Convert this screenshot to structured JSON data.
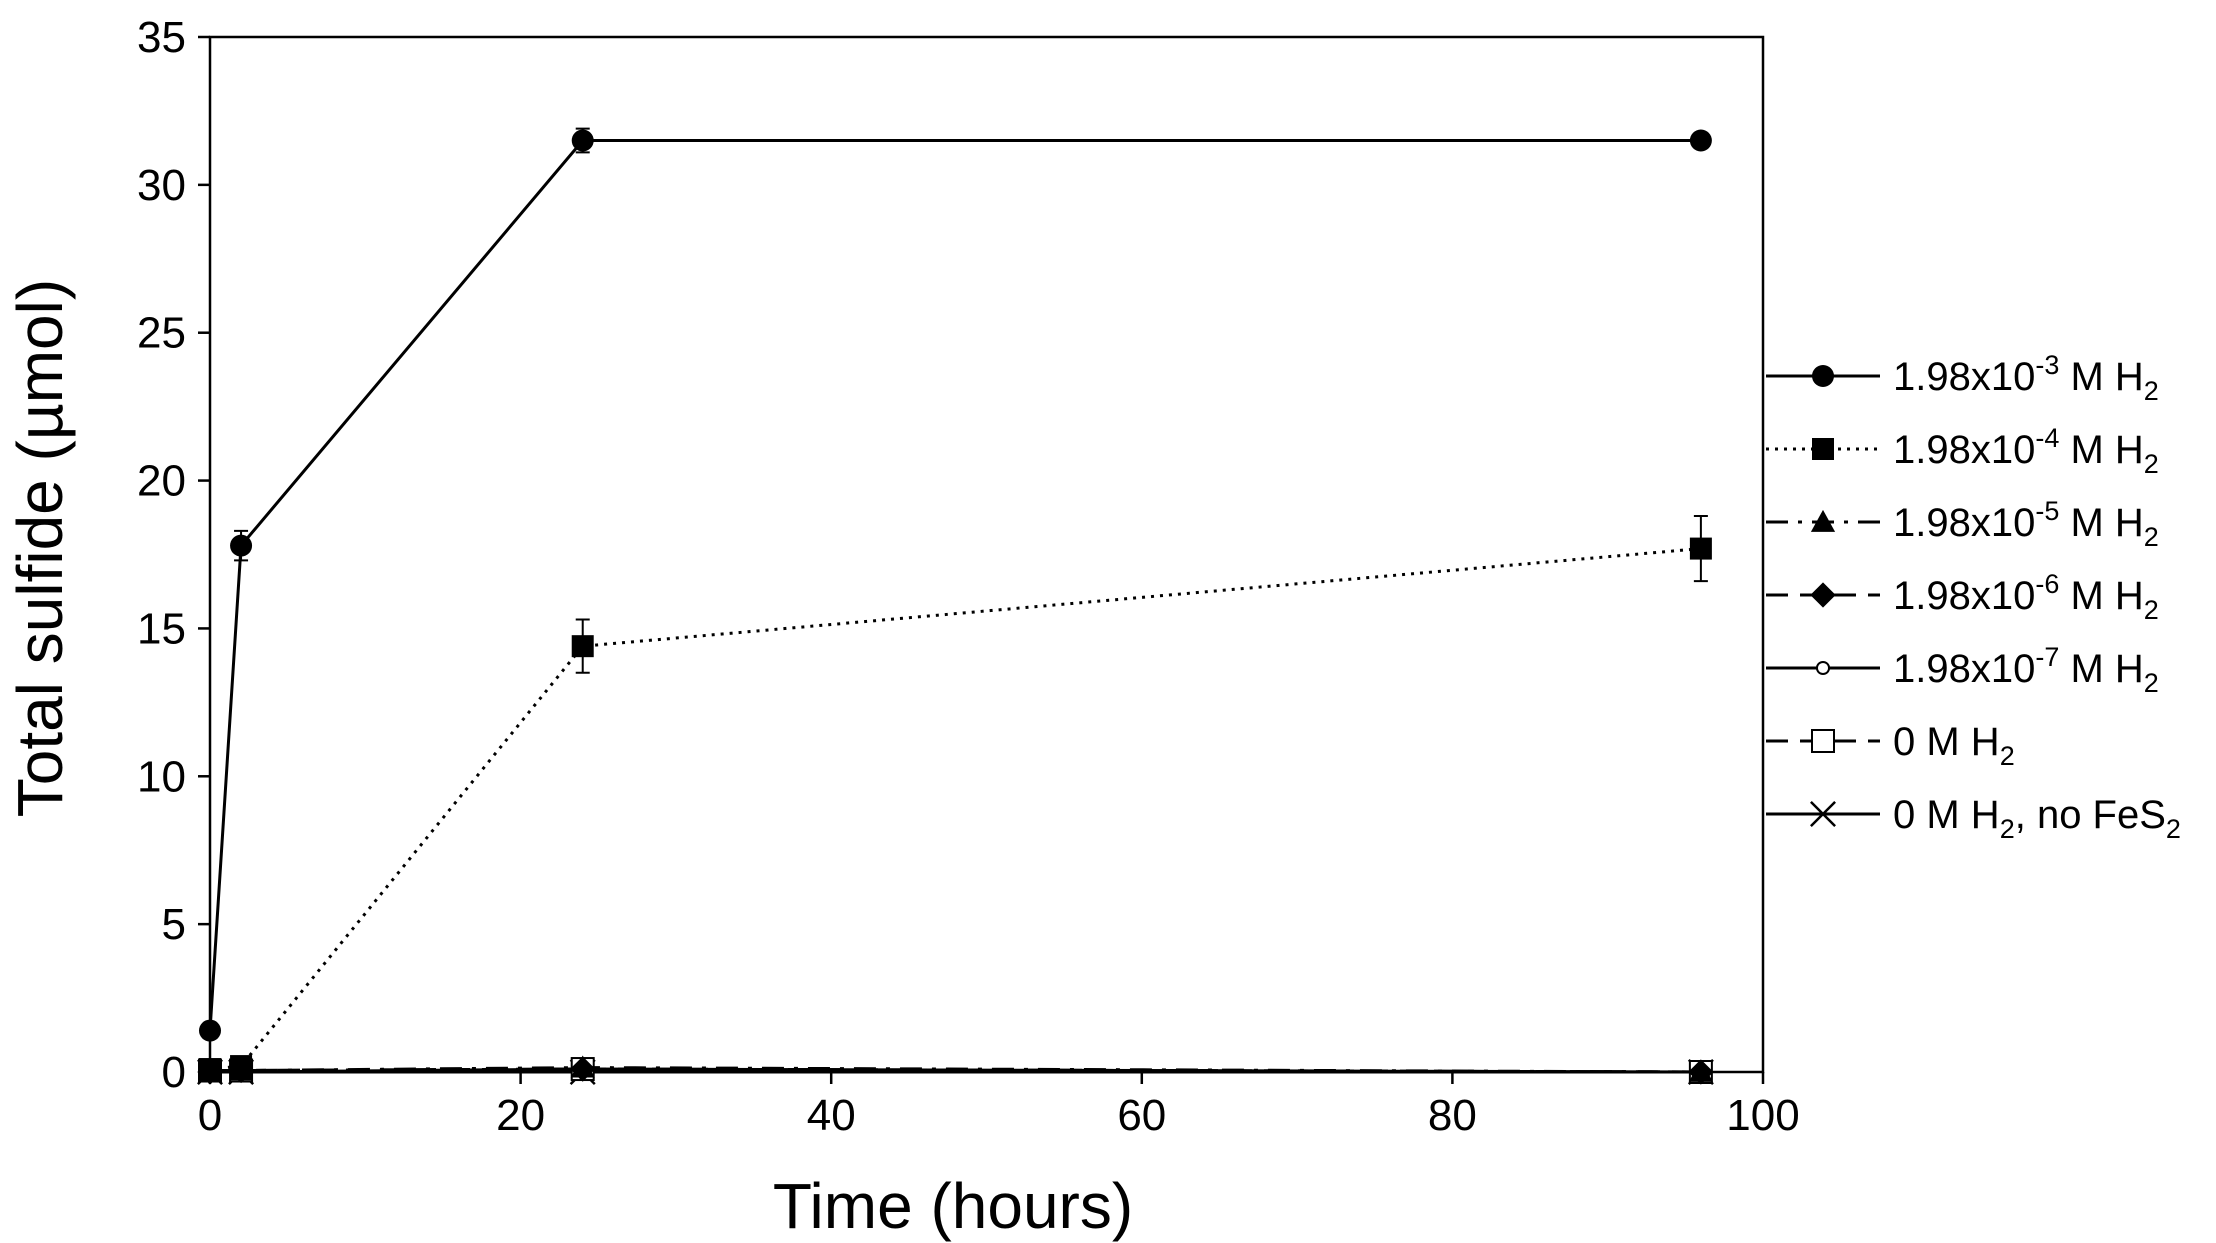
{
  "chart_data": {
    "type": "line",
    "xlabel": "Time (hours)",
    "ylabel": "Total sulfide (µmol)",
    "xlim": [
      0,
      100
    ],
    "ylim": [
      0,
      35
    ],
    "xticks": [
      0,
      20,
      40,
      60,
      80,
      100
    ],
    "yticks": [
      0,
      5,
      10,
      15,
      20,
      25,
      30,
      35
    ],
    "grid": false,
    "legend_position": "right",
    "series": [
      {
        "name": "1.98x10-3 M H2",
        "label": {
          "base": "1.98x10",
          "exp": "-3",
          "tail": " M H",
          "sub": "2",
          "after": ""
        },
        "marker": "circle-filled",
        "line": "solid",
        "x": [
          0,
          2,
          24,
          96
        ],
        "y": [
          1.4,
          17.8,
          31.5,
          31.5
        ],
        "err": [
          0,
          0.5,
          0.4,
          0
        ]
      },
      {
        "name": "1.98x10-4 M H2",
        "label": {
          "base": "1.98x10",
          "exp": "-4",
          "tail": " M H",
          "sub": "2",
          "after": ""
        },
        "marker": "square-filled",
        "line": "dotted",
        "x": [
          0,
          2,
          24,
          96
        ],
        "y": [
          0.1,
          0.2,
          14.4,
          17.7
        ],
        "err": [
          0,
          0,
          0.9,
          1.1
        ]
      },
      {
        "name": "1.98x10-5 M H2",
        "label": {
          "base": "1.98x10",
          "exp": "-5",
          "tail": " M H",
          "sub": "2",
          "after": ""
        },
        "marker": "triangle-filled",
        "line": "dashdot",
        "x": [
          0,
          2,
          24,
          96
        ],
        "y": [
          0.0,
          0.05,
          0.15,
          0.0
        ],
        "err": [
          0,
          0,
          0.1,
          0
        ]
      },
      {
        "name": "1.98x10-6 M H2",
        "label": {
          "base": "1.98x10",
          "exp": "-6",
          "tail": " M H",
          "sub": "2",
          "after": ""
        },
        "marker": "diamond-filled",
        "line": "dashed",
        "x": [
          0,
          2,
          24,
          96
        ],
        "y": [
          0.0,
          0.05,
          0.1,
          0.0
        ],
        "err": [
          0,
          0,
          0.1,
          0
        ]
      },
      {
        "name": "1.98x10-7 M H2",
        "label": {
          "base": "1.98x10",
          "exp": "-7",
          "tail": " M H",
          "sub": "2",
          "after": ""
        },
        "marker": "circle-open",
        "line": "solid",
        "x": [
          0,
          2,
          24,
          96
        ],
        "y": [
          0.0,
          0.0,
          0.1,
          0.0
        ],
        "err": [
          0,
          0,
          0,
          0
        ]
      },
      {
        "name": "0 M H2",
        "label": {
          "base": "0 M H",
          "exp": "",
          "tail": "",
          "sub": "2",
          "after": ""
        },
        "marker": "square-open",
        "line": "dashed",
        "x": [
          0,
          2,
          24,
          96
        ],
        "y": [
          0.05,
          0.05,
          0.1,
          0.0
        ],
        "err": [
          0,
          0,
          0,
          0
        ]
      },
      {
        "name": "0 M H2, no FeS2",
        "label": {
          "base": "0 M H",
          "exp": "",
          "tail": "",
          "sub": "2",
          "after": ", no FeS",
          "sub2": "2"
        },
        "marker": "x",
        "line": "solid",
        "x": [
          0,
          2,
          24,
          96
        ],
        "y": [
          0.0,
          0.0,
          0.0,
          0.0
        ],
        "err": [
          0,
          0,
          0,
          0
        ]
      }
    ]
  }
}
